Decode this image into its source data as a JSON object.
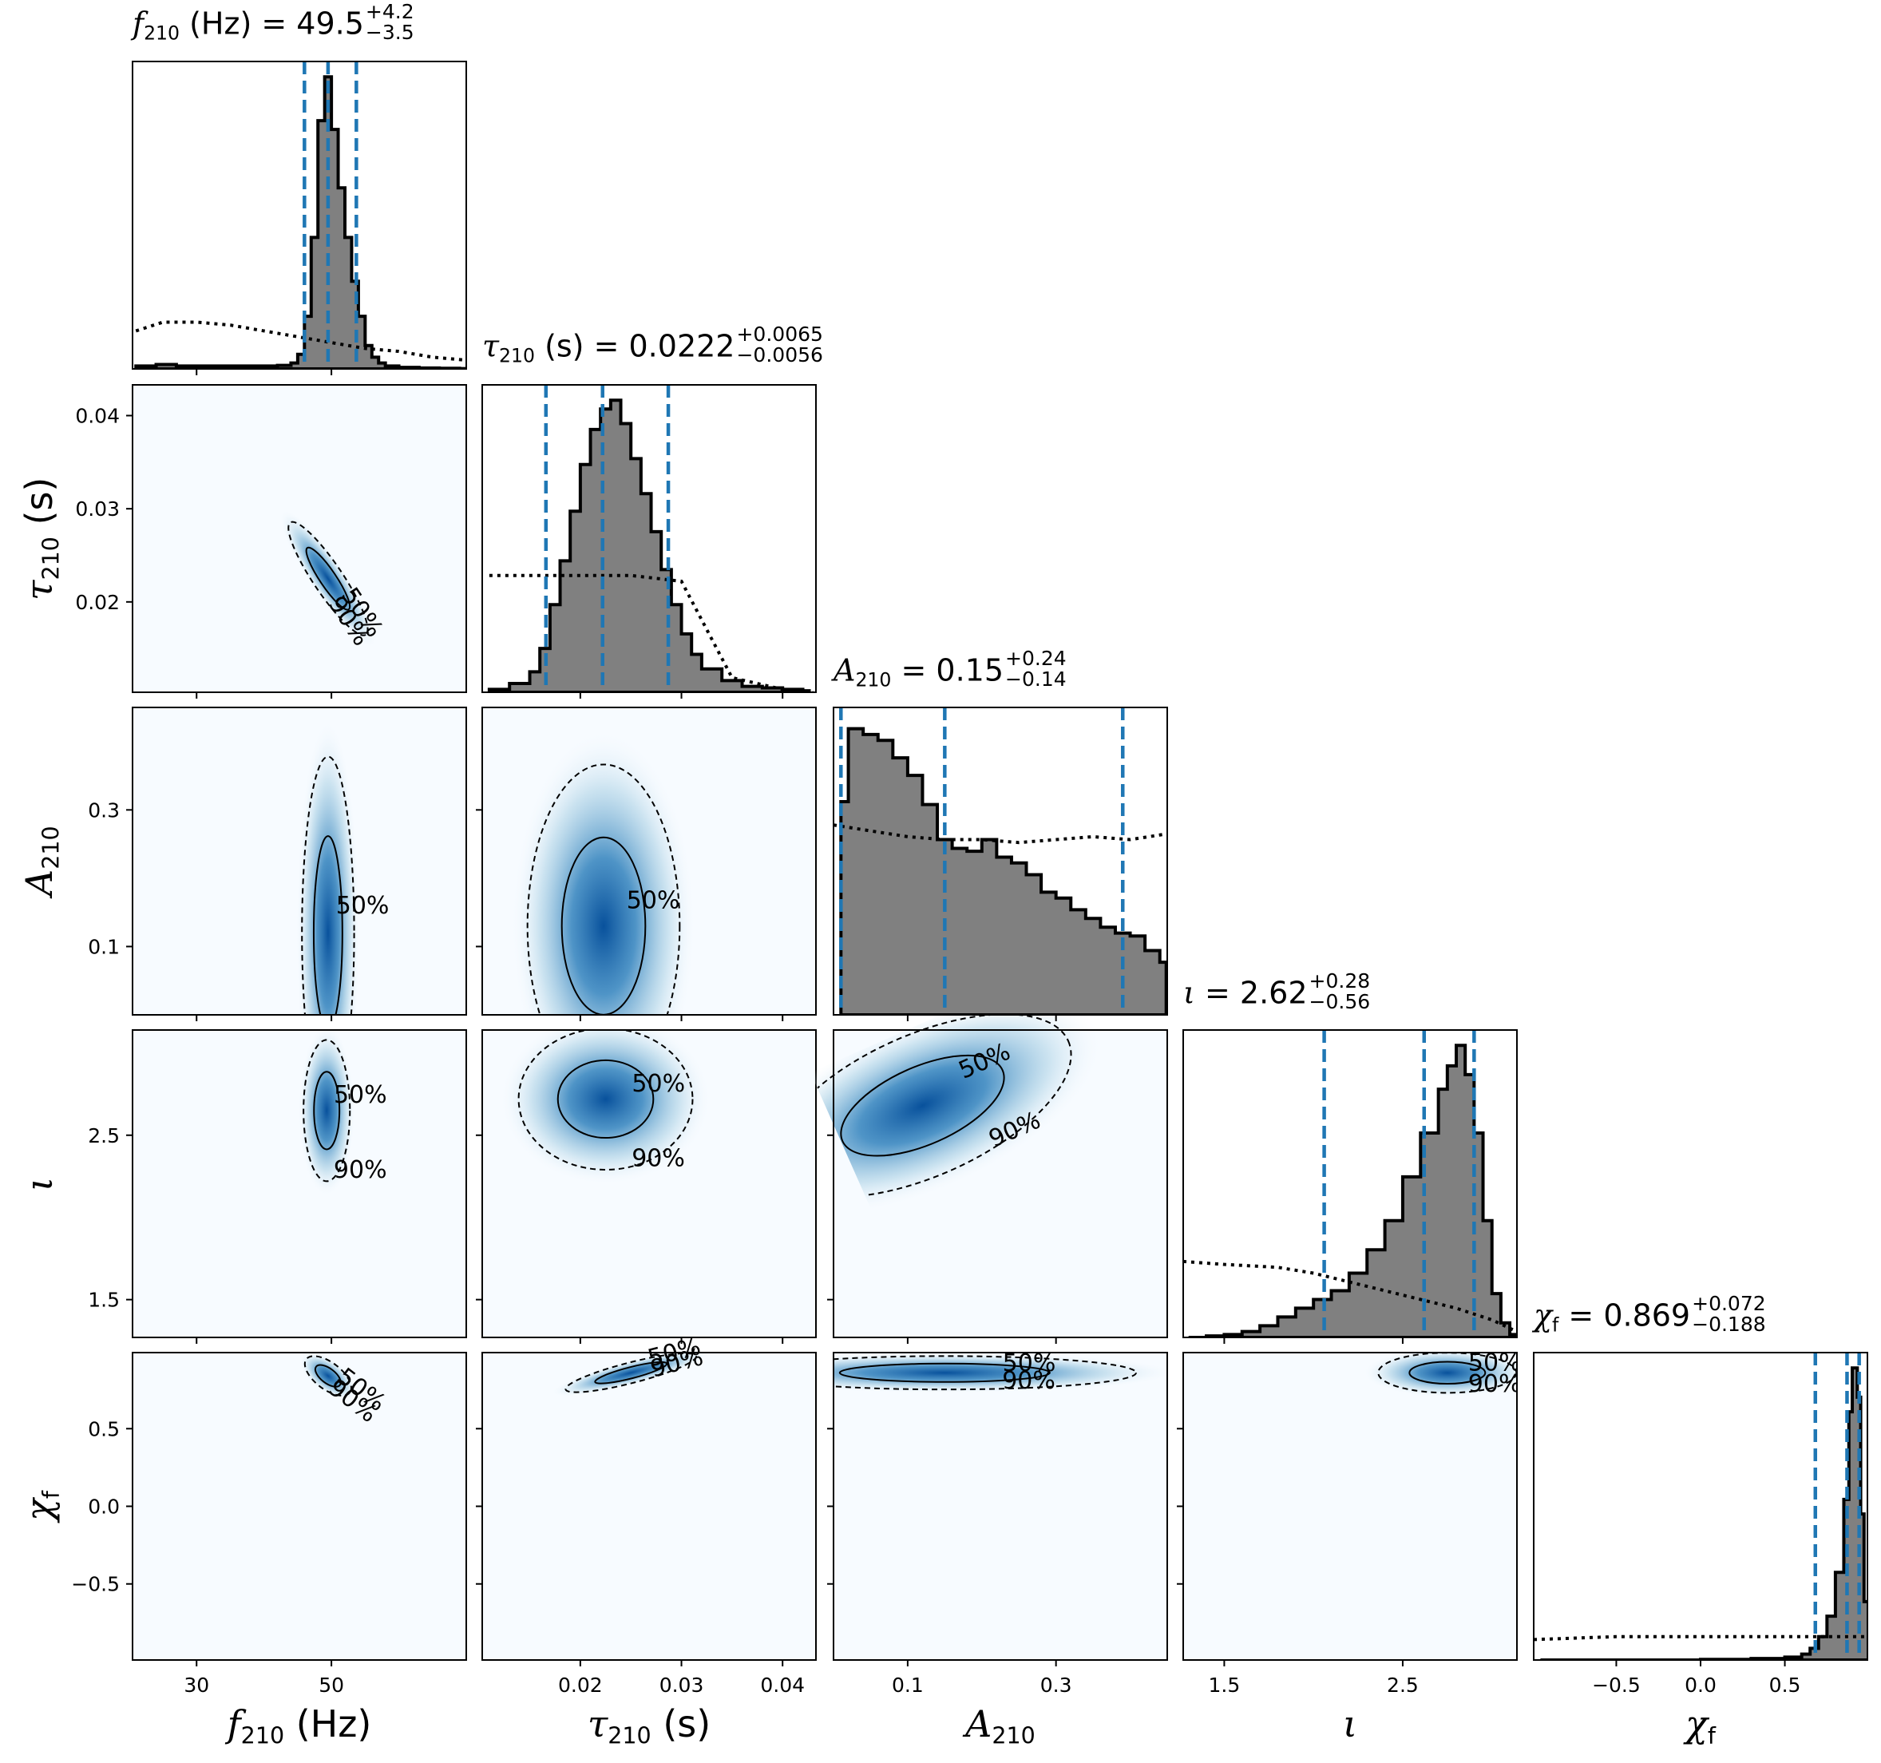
{
  "params": [
    {
      "key": "f210",
      "sym": "f",
      "sub": "210",
      "unit": "Hz",
      "xlabel": "f210 (Hz)",
      "range": [
        20.5,
        70
      ],
      "ticks": [
        30,
        50
      ],
      "tick_labels": [
        "30",
        "50"
      ]
    },
    {
      "key": "tau210",
      "sym": "τ",
      "sub": "210",
      "unit": "s",
      "xlabel": "τ210 (s)",
      "range": [
        0.0103,
        0.0433
      ],
      "ticks": [
        0.02,
        0.03,
        0.04
      ],
      "tick_labels": [
        "0.02",
        "0.03",
        "0.04"
      ]
    },
    {
      "key": "A210",
      "sym": "A",
      "sub": "210",
      "unit": "",
      "xlabel": "A210",
      "range": [
        0.0,
        0.45
      ],
      "ticks": [
        0.1,
        0.3
      ],
      "tick_labels": [
        "0.1",
        "0.3"
      ]
    },
    {
      "key": "iota",
      "sym": "ι",
      "sub": "",
      "unit": "",
      "xlabel": "ι",
      "range": [
        1.27,
        3.14
      ],
      "ticks": [
        1.5,
        2.5
      ],
      "tick_labels": [
        "1.5",
        "2.5"
      ]
    },
    {
      "key": "chif",
      "sym": "χ",
      "sub": "f",
      "unit": "",
      "xlabel": "χf",
      "range": [
        -0.99,
        0.99
      ],
      "ticks": [
        -0.5,
        0.0,
        0.5
      ],
      "tick_labels": [
        "−0.5",
        "0.0",
        "0.5"
      ]
    }
  ],
  "y_ticks": {
    "tau210": {
      "ticks": [
        0.02,
        0.03,
        0.04
      ],
      "labels": [
        "0.02",
        "0.03",
        "0.04"
      ]
    },
    "A210": {
      "ticks": [
        0.1,
        0.3
      ],
      "labels": [
        "0.1",
        "0.3"
      ]
    },
    "iota": {
      "ticks": [
        1.5,
        2.5
      ],
      "labels": [
        "1.5",
        "2.5"
      ]
    },
    "chif": {
      "ticks": [
        -0.5,
        0.0,
        0.5
      ],
      "labels": [
        "−0.5",
        "0.0",
        "0.5"
      ]
    }
  },
  "titles": [
    {
      "name": "f210",
      "sym": "f",
      "sub": "210",
      "unit": " (Hz)",
      "median": "49.5",
      "plus": "+4.2",
      "minus": "−3.5"
    },
    {
      "name": "tau210",
      "sym": "τ",
      "sub": "210",
      "unit": " (s)",
      "median": "0.0222",
      "plus": "+0.0065",
      "minus": "−0.0056"
    },
    {
      "name": "A210",
      "sym": "A",
      "sub": "210",
      "unit": "",
      "median": "0.15",
      "plus": "+0.24",
      "minus": "−0.14"
    },
    {
      "name": "iota",
      "sym": "ι",
      "sub": "",
      "unit": "",
      "median": "2.62",
      "plus": "+0.28",
      "minus": "−0.56"
    },
    {
      "name": "chif",
      "sym": "χ",
      "sub": "f",
      "unit": "",
      "median": "0.869",
      "plus": "+0.072",
      "minus": "−0.188"
    }
  ],
  "contour_labels": {
    "inner": "50%",
    "outer": "90%"
  },
  "colors": {
    "hist_fill": "#808080",
    "quantile_line": "#1f77b4",
    "density_low": "#f7fbff",
    "density_high": "#08519c"
  },
  "chart_data": {
    "type": "corner",
    "quantiles": {
      "f210": [
        46.0,
        49.5,
        53.7
      ],
      "tau210": [
        0.0166,
        0.0222,
        0.0287
      ],
      "A210": [
        0.01,
        0.15,
        0.39
      ],
      "iota": [
        2.06,
        2.62,
        2.9
      ],
      "chif": [
        0.681,
        0.869,
        0.941
      ]
    },
    "posterior_histograms": {
      "f210": {
        "x": [
          21,
          24,
          27,
          30,
          33,
          36,
          39,
          42,
          44,
          45,
          46,
          47,
          48,
          49,
          50,
          51,
          52,
          53,
          54,
          55,
          56,
          57,
          58,
          60,
          63,
          66,
          69
        ],
        "y": [
          0.01,
          0.015,
          0.01,
          0.01,
          0.01,
          0.01,
          0.01,
          0.012,
          0.02,
          0.05,
          0.18,
          0.45,
          0.85,
          1.0,
          0.82,
          0.62,
          0.45,
          0.3,
          0.18,
          0.08,
          0.04,
          0.02,
          0.01,
          0.005,
          0.003,
          0.002,
          0.001
        ]
      },
      "tau210": {
        "x": [
          0.011,
          0.013,
          0.015,
          0.016,
          0.017,
          0.018,
          0.019,
          0.02,
          0.021,
          0.022,
          0.023,
          0.024,
          0.025,
          0.026,
          0.027,
          0.028,
          0.029,
          0.03,
          0.031,
          0.032,
          0.034,
          0.036,
          0.038,
          0.04,
          0.042
        ],
        "y": [
          0.01,
          0.03,
          0.07,
          0.15,
          0.3,
          0.45,
          0.62,
          0.78,
          0.9,
          0.97,
          1.0,
          0.92,
          0.8,
          0.68,
          0.55,
          0.42,
          0.3,
          0.2,
          0.13,
          0.08,
          0.04,
          0.02,
          0.015,
          0.01,
          0.005
        ]
      },
      "A210": {
        "x": [
          0.01,
          0.02,
          0.04,
          0.06,
          0.08,
          0.1,
          0.12,
          0.14,
          0.16,
          0.18,
          0.2,
          0.22,
          0.24,
          0.26,
          0.28,
          0.3,
          0.32,
          0.34,
          0.36,
          0.38,
          0.4,
          0.42,
          0.44
        ],
        "y": [
          0.73,
          0.98,
          0.96,
          0.94,
          0.88,
          0.82,
          0.72,
          0.6,
          0.57,
          0.56,
          0.6,
          0.54,
          0.52,
          0.48,
          0.42,
          0.4,
          0.36,
          0.33,
          0.3,
          0.28,
          0.27,
          0.22,
          0.18
        ]
      },
      "iota": {
        "x": [
          1.3,
          1.4,
          1.5,
          1.6,
          1.7,
          1.8,
          1.9,
          2.0,
          2.1,
          2.2,
          2.3,
          2.4,
          2.5,
          2.6,
          2.7,
          2.75,
          2.8,
          2.85,
          2.9,
          2.95,
          3.0,
          3.05,
          3.1
        ],
        "y": [
          0.0,
          0.005,
          0.01,
          0.02,
          0.04,
          0.07,
          0.1,
          0.13,
          0.16,
          0.22,
          0.3,
          0.4,
          0.55,
          0.7,
          0.85,
          0.93,
          1.0,
          0.9,
          0.7,
          0.4,
          0.15,
          0.05,
          0.01
        ]
      },
      "chif": {
        "x": [
          -0.95,
          -0.5,
          0.0,
          0.3,
          0.5,
          0.6,
          0.65,
          0.7,
          0.75,
          0.8,
          0.85,
          0.88,
          0.9,
          0.93,
          0.95,
          0.97
        ],
        "y": [
          0.0,
          0.0,
          0.002,
          0.005,
          0.01,
          0.02,
          0.04,
          0.08,
          0.15,
          0.3,
          0.55,
          0.85,
          1.0,
          0.9,
          0.5,
          0.2
        ]
      }
    },
    "prior_histograms": {
      "f210": {
        "x": [
          21,
          25,
          30,
          35,
          40,
          45,
          50,
          55,
          60,
          65,
          70
        ],
        "y": [
          0.13,
          0.16,
          0.16,
          0.15,
          0.13,
          0.11,
          0.09,
          0.07,
          0.06,
          0.04,
          0.03
        ]
      },
      "tau210": {
        "x": [
          0.011,
          0.015,
          0.02,
          0.025,
          0.03,
          0.035,
          0.04,
          0.043
        ],
        "y": [
          0.4,
          0.4,
          0.4,
          0.4,
          0.38,
          0.05,
          0.01,
          0.0
        ]
      },
      "A210": {
        "x": [
          0.0,
          0.05,
          0.1,
          0.15,
          0.2,
          0.25,
          0.3,
          0.35,
          0.4,
          0.45
        ],
        "y": [
          0.65,
          0.63,
          0.61,
          0.6,
          0.6,
          0.59,
          0.6,
          0.61,
          0.6,
          0.62
        ]
      },
      "iota": {
        "x": [
          1.27,
          1.5,
          1.8,
          2.0,
          2.2,
          2.4,
          2.6,
          2.8,
          3.0,
          3.14
        ],
        "y": [
          0.26,
          0.25,
          0.24,
          0.22,
          0.19,
          0.16,
          0.13,
          0.1,
          0.06,
          0.02
        ]
      },
      "chif": {
        "x": [
          -0.99,
          -0.5,
          0.0,
          0.5,
          0.99
        ],
        "y": [
          0.07,
          0.08,
          0.08,
          0.08,
          0.08
        ]
      }
    },
    "density_2d": [
      {
        "x": "f210",
        "y": "tau210",
        "center": [
          49.5,
          0.0225
        ],
        "sd": [
          2.6,
          0.0028
        ],
        "rho": -0.92
      },
      {
        "x": "f210",
        "y": "A210",
        "center": [
          49.5,
          0.12
        ],
        "sd": [
          1.8,
          0.12
        ],
        "rho": 0.0
      },
      {
        "x": "tau210",
        "y": "A210",
        "center": [
          0.0223,
          0.13
        ],
        "sd": [
          0.0035,
          0.11
        ],
        "rho": 0.0
      },
      {
        "x": "f210",
        "y": "iota",
        "center": [
          49.3,
          2.65
        ],
        "sd": [
          1.6,
          0.2
        ],
        "rho": 0.0
      },
      {
        "x": "tau210",
        "y": "iota",
        "center": [
          0.0225,
          2.72
        ],
        "sd": [
          0.004,
          0.2
        ],
        "rho": 0.0
      },
      {
        "x": "A210",
        "y": "iota",
        "center": [
          0.12,
          2.68
        ],
        "sd": [
          0.1,
          0.2
        ],
        "rho": 0.2
      },
      {
        "x": "iota",
        "y": "chif",
        "center": [
          2.75,
          0.86
        ],
        "sd": [
          0.18,
          0.06
        ],
        "rho": 0.0
      },
      {
        "x": "f210",
        "y": "chif",
        "center": [
          49.5,
          0.84
        ],
        "sd": [
          1.5,
          0.05
        ],
        "rho": -0.6
      },
      {
        "x": "tau210",
        "y": "chif",
        "center": [
          0.025,
          0.86
        ],
        "sd": [
          0.003,
          0.05
        ],
        "rho": 0.8
      },
      {
        "x": "A210",
        "y": "chif",
        "center": [
          0.15,
          0.86
        ],
        "sd": [
          0.12,
          0.05
        ],
        "rho": 0.0
      }
    ]
  }
}
